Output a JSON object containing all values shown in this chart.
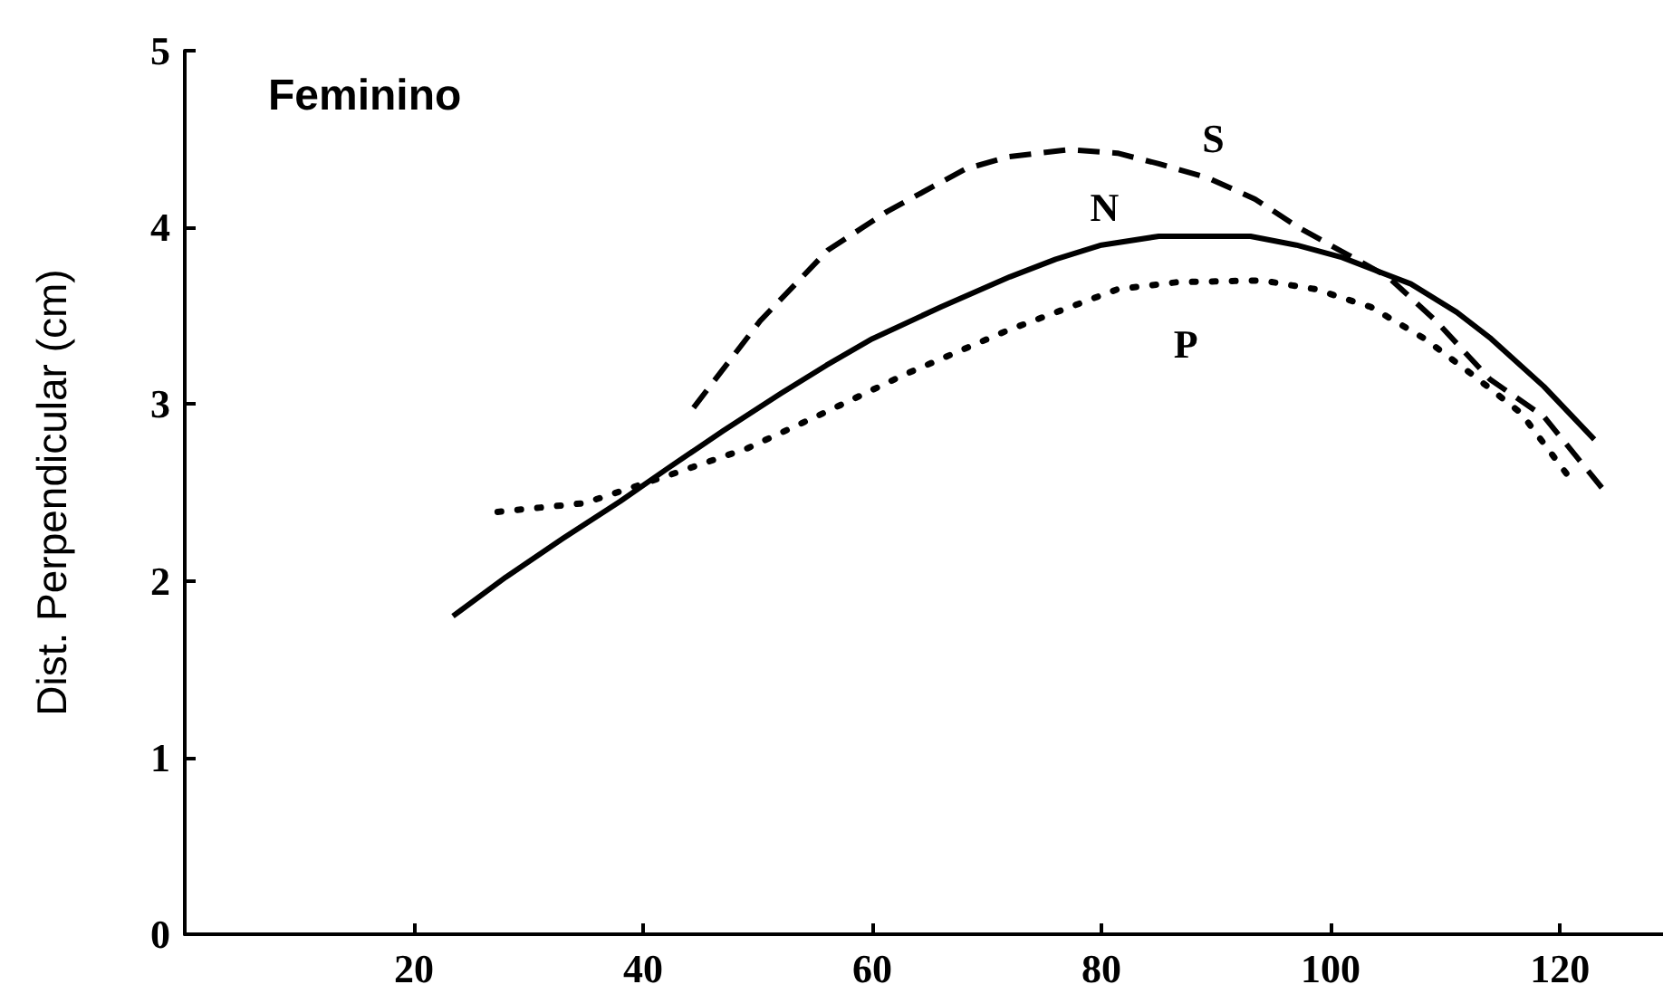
{
  "chart_data": {
    "type": "line",
    "title": "Feminino",
    "ylabel": "Dist. Perpendicular (cm)",
    "xlim": [
      0,
      129
    ],
    "xticks": [
      20,
      40,
      60,
      80,
      100,
      120
    ],
    "ylim": [
      0,
      5
    ],
    "yticks": [
      0,
      1,
      2,
      3,
      4,
      5
    ],
    "grid": false,
    "marker": "none",
    "series": [
      {
        "name": "S",
        "color": "#000000",
        "line_style": "dashed",
        "x": [
          44.4,
          50.2,
          56.1,
          61.3,
          68.1,
          71.9,
          77.1,
          81.4,
          85,
          89.3,
          93.4,
          97.2,
          100.8,
          105,
          109.2,
          113.9,
          118.6,
          124
        ],
        "values": [
          2.98,
          3.47,
          3.87,
          4.09,
          4.33,
          4.4,
          4.44,
          4.42,
          4.36,
          4.28,
          4.16,
          4.0,
          3.87,
          3.72,
          3.47,
          3.14,
          2.93,
          2.5
        ]
      },
      {
        "name": "N",
        "color": "#000000",
        "line_style": "solid",
        "x": [
          23.4,
          28,
          33,
          38,
          42,
          47,
          52,
          56,
          60,
          66,
          72,
          76,
          80,
          85,
          93,
          97,
          101,
          107,
          111,
          114,
          118.6,
          123
        ],
        "values": [
          1.8,
          2.02,
          2.24,
          2.45,
          2.63,
          2.85,
          3.06,
          3.22,
          3.37,
          3.55,
          3.72,
          3.82,
          3.9,
          3.95,
          3.95,
          3.9,
          3.83,
          3.68,
          3.52,
          3.37,
          3.1,
          2.8
        ]
      },
      {
        "name": "P",
        "color": "#000000",
        "line_style": "dotted",
        "x": [
          27.3,
          34.9,
          41.9,
          49.1,
          56.1,
          62.9,
          71.9,
          74.4,
          81.4,
          86.6,
          94,
          98.7,
          103.5,
          108.2,
          112.3,
          116.6,
          121
        ],
        "values": [
          2.39,
          2.44,
          2.59,
          2.75,
          2.96,
          3.17,
          3.42,
          3.48,
          3.65,
          3.69,
          3.7,
          3.65,
          3.55,
          3.37,
          3.17,
          2.95,
          2.57
        ]
      }
    ]
  }
}
